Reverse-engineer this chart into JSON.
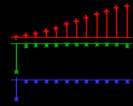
{
  "background_color": "#000000",
  "red_x": [
    0,
    1,
    2,
    3,
    4,
    5,
    6,
    7,
    8,
    9,
    10,
    11
  ],
  "red_y": [
    0.02,
    0.06,
    0.12,
    0.2,
    0.3,
    0.42,
    0.52,
    0.63,
    0.73,
    0.83,
    0.93,
    1.0
  ],
  "green_x": [
    0,
    1,
    2,
    3,
    4,
    5,
    6,
    7,
    8,
    9,
    10,
    11
  ],
  "green_y": [
    -1.0,
    -0.1,
    -0.07,
    -0.06,
    -0.05,
    -0.04,
    -0.04,
    -0.04,
    -0.04,
    -0.04,
    -0.04,
    -0.1
  ],
  "blue_x": [
    0,
    1,
    2,
    3,
    4,
    5,
    6,
    7,
    8,
    9,
    10,
    11
  ],
  "blue_y": [
    -0.5,
    0.0,
    0.0,
    0.0,
    0.0,
    0.0,
    0.0,
    0.0,
    0.0,
    0.0,
    0.0,
    0.0
  ],
  "red_color": "#ff0000",
  "green_color": "#00bb00",
  "blue_color": "#3333ff",
  "linewidth": 1.0
}
